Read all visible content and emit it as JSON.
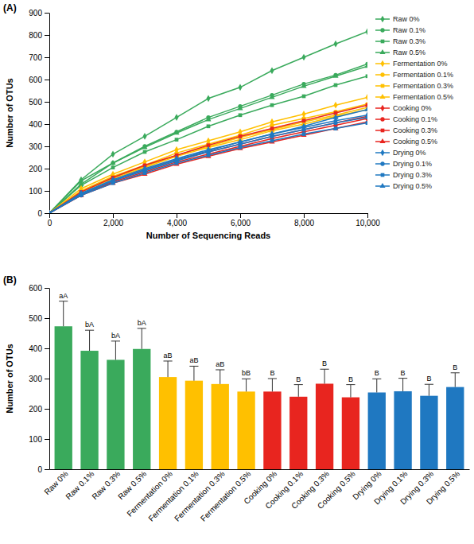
{
  "chart_data": [
    {
      "type": "line",
      "title": "(A)",
      "x_label": "Number of Sequencing Reads",
      "y_label": "Number of OTUs",
      "x": [
        0,
        1000,
        2000,
        3000,
        4000,
        5000,
        6000,
        7000,
        8000,
        9000,
        10000
      ],
      "xlim": [
        0,
        10000
      ],
      "xticks": [
        0,
        {
          "value": 2000,
          "label": "2,000"
        },
        {
          "value": 4000,
          "label": "4,000"
        },
        {
          "value": 6000,
          "label": "6,000"
        },
        {
          "value": 8000,
          "label": "8,000"
        },
        {
          "value": 10000,
          "label": "10,000"
        }
      ],
      "ylim": [
        0,
        900
      ],
      "yticks": [
        0,
        100,
        200,
        300,
        400,
        500,
        600,
        700,
        800,
        900
      ],
      "grid": false,
      "legend": "right",
      "series": [
        {
          "name": "Raw 0%",
          "color": "#3aaa5c",
          "marker": "diamond",
          "line_style": "solid",
          "values": [
            0,
            150,
            265,
            345,
            430,
            515,
            565,
            640,
            700,
            760,
            815
          ]
        },
        {
          "name": "Raw 0.1%",
          "color": "#3aaa5c",
          "marker": "circle",
          "line_style": "solid",
          "values": [
            0,
            145,
            225,
            300,
            365,
            430,
            480,
            530,
            580,
            620,
            670
          ]
        },
        {
          "name": "Raw 0.3%",
          "color": "#3aaa5c",
          "marker": "square",
          "line_style": "solid",
          "values": [
            0,
            125,
            205,
            275,
            330,
            390,
            440,
            485,
            525,
            575,
            615
          ]
        },
        {
          "name": "Raw 0.5%",
          "color": "#3aaa5c",
          "marker": "triangle",
          "line_style": "solid",
          "values": [
            0,
            130,
            225,
            295,
            360,
            420,
            470,
            520,
            570,
            615,
            660
          ]
        },
        {
          "name": "Fermentation 0%",
          "color": "#ffc000",
          "marker": "diamond",
          "line_style": "solid",
          "values": [
            0,
            110,
            175,
            230,
            285,
            325,
            365,
            410,
            445,
            485,
            520
          ]
        },
        {
          "name": "Fermentation 0.1%",
          "color": "#ffc000",
          "marker": "circle",
          "line_style": "solid",
          "values": [
            0,
            100,
            165,
            215,
            270,
            310,
            350,
            395,
            425,
            455,
            490
          ]
        },
        {
          "name": "Fermentation 0.3%",
          "color": "#ffc000",
          "marker": "square",
          "line_style": "solid",
          "values": [
            0,
            95,
            160,
            210,
            260,
            300,
            340,
            375,
            410,
            440,
            475
          ]
        },
        {
          "name": "Fermentation 0.5%",
          "color": "#ffc000",
          "marker": "triangle",
          "line_style": "solid",
          "values": [
            0,
            95,
            155,
            205,
            255,
            295,
            330,
            370,
            400,
            435,
            465
          ]
        },
        {
          "name": "Cooking 0%",
          "color": "#e8251f",
          "marker": "diamond",
          "line_style": "solid",
          "values": [
            0,
            85,
            145,
            195,
            240,
            275,
            310,
            345,
            375,
            405,
            435
          ]
        },
        {
          "name": "Cooking 0.1%",
          "color": "#e8251f",
          "marker": "circle",
          "line_style": "solid",
          "values": [
            0,
            80,
            140,
            185,
            230,
            265,
            300,
            335,
            365,
            395,
            425
          ]
        },
        {
          "name": "Cooking 0.3%",
          "color": "#e8251f",
          "marker": "square",
          "line_style": "solid",
          "values": [
            0,
            95,
            160,
            215,
            260,
            305,
            345,
            380,
            415,
            450,
            485
          ]
        },
        {
          "name": "Cooking 0.5%",
          "color": "#e8251f",
          "marker": "triangle",
          "line_style": "solid",
          "values": [
            0,
            80,
            135,
            175,
            220,
            255,
            290,
            320,
            350,
            380,
            410
          ]
        },
        {
          "name": "Drying 0%",
          "color": "#1f78c1",
          "marker": "diamond",
          "line_style": "solid",
          "values": [
            0,
            90,
            150,
            200,
            245,
            285,
            320,
            355,
            385,
            415,
            440
          ]
        },
        {
          "name": "Drying 0.1%",
          "color": "#1f78c1",
          "marker": "circle",
          "line_style": "solid",
          "values": [
            0,
            85,
            145,
            190,
            235,
            275,
            310,
            345,
            375,
            405,
            430
          ]
        },
        {
          "name": "Drying 0.3%",
          "color": "#1f78c1",
          "marker": "square",
          "line_style": "solid",
          "values": [
            0,
            80,
            135,
            180,
            225,
            260,
            295,
            325,
            355,
            380,
            405
          ]
        },
        {
          "name": "Drying 0.5%",
          "color": "#1f78c1",
          "marker": "triangle",
          "line_style": "solid",
          "values": [
            0,
            85,
            145,
            195,
            240,
            280,
            320,
            355,
            390,
            430,
            465
          ]
        }
      ]
    },
    {
      "type": "bar",
      "title": "(B)",
      "y_label": "Number of OTUs",
      "categories": [
        "Raw 0%",
        "Raw 0.1%",
        "Raw 0.3%",
        "Raw 0.5%",
        "Fermentation 0%",
        "Fermentation 0.1%",
        "Fermentation 0.3%",
        "Fermentation 0.5%",
        "Cooking 0%",
        "Cooking 0.1%",
        "Cooking 0.3%",
        "Cooking 0.5%",
        "Drying 0%",
        "Drying 0.1%",
        "Drying 0.3%",
        "Drying 0.5%"
      ],
      "values": [
        473,
        392,
        362,
        398,
        305,
        293,
        282,
        257,
        257,
        240,
        283,
        238,
        254,
        258,
        243,
        272
      ],
      "errors": [
        83,
        68,
        62,
        68,
        53,
        48,
        47,
        42,
        43,
        40,
        48,
        42,
        45,
        43,
        38,
        47
      ],
      "annotations": [
        "aA",
        "bA",
        "bA",
        "bA",
        "aB",
        "aB",
        "aB",
        "bB",
        "B",
        "B",
        "B",
        "B",
        "B",
        "B",
        "B",
        "B"
      ],
      "colors": [
        "#3aaa5c",
        "#3aaa5c",
        "#3aaa5c",
        "#3aaa5c",
        "#ffc000",
        "#ffc000",
        "#ffc000",
        "#ffc000",
        "#e8251f",
        "#e8251f",
        "#e8251f",
        "#e8251f",
        "#1f78c1",
        "#1f78c1",
        "#1f78c1",
        "#1f78c1"
      ],
      "ylim": [
        0,
        600
      ],
      "yticks": [
        0,
        100,
        200,
        300,
        400,
        500,
        600
      ],
      "grid": false
    }
  ]
}
